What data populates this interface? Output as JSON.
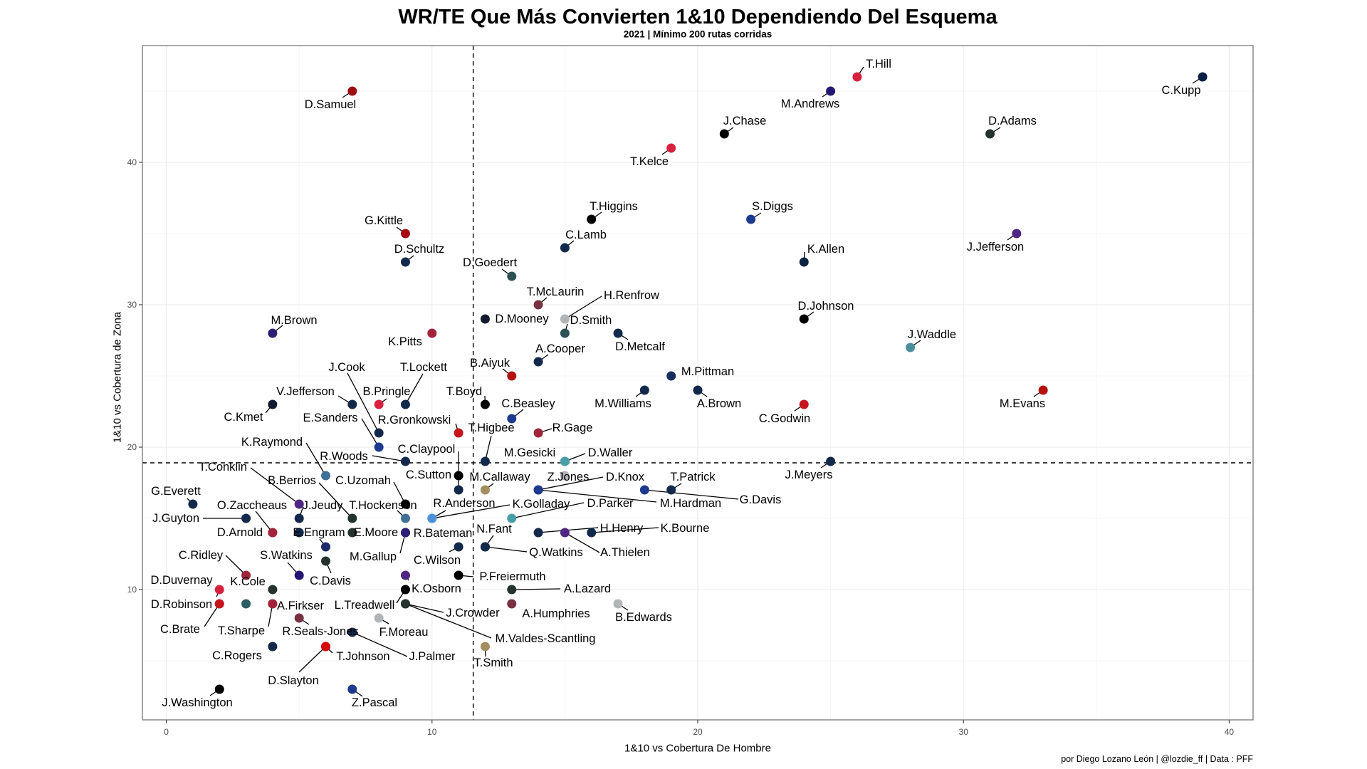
{
  "chart_data": {
    "type": "scatter",
    "title": "WR/TE Que Más Convierten 1&10 Dependiendo Del Esquema",
    "subtitle": "2021 | Mínimo 200 rutas corridas",
    "xlabel": "1&10 vs Cobertura De Hombre",
    "ylabel": "1&10 vs Cobertura de Zona",
    "caption": "por Diego Lozano León | @lozdie_ff | Data : PFF",
    "xlim": [
      -0.9,
      40.9
    ],
    "ylim": [
      0.85,
      48.2
    ],
    "x_ticks": [
      0,
      10,
      20,
      30,
      40
    ],
    "y_ticks": [
      10,
      20,
      30,
      40
    ],
    "grid": true,
    "reference_lines": {
      "x": 11.55,
      "y": 18.9
    },
    "points": [
      {
        "name": "D.Samuel",
        "x": 7,
        "y": 45,
        "color": "#9b0f12"
      },
      {
        "name": "T.Hill",
        "x": 26,
        "y": 46,
        "color": "#d8213f"
      },
      {
        "name": "M.Andrews",
        "x": 25,
        "y": 45,
        "color": "#241773"
      },
      {
        "name": "C.Kupp",
        "x": 39,
        "y": 46,
        "color": "#0b1f44"
      },
      {
        "name": "J.Chase",
        "x": 21,
        "y": 42,
        "color": "#000000"
      },
      {
        "name": "D.Adams",
        "x": 31,
        "y": 42,
        "color": "#24332d"
      },
      {
        "name": "T.Kelce",
        "x": 19,
        "y": 41,
        "color": "#d8213f"
      },
      {
        "name": "T.Higgins",
        "x": 16,
        "y": 36,
        "color": "#000000"
      },
      {
        "name": "S.Diggs",
        "x": 22,
        "y": 36,
        "color": "#1d3a8f"
      },
      {
        "name": "J.Jefferson",
        "x": 32,
        "y": 35,
        "color": "#4f2683"
      },
      {
        "name": "G.Kittle",
        "x": 9,
        "y": 35,
        "color": "#a50d12"
      },
      {
        "name": "C.Lamb",
        "x": 15,
        "y": 34,
        "color": "#13294b"
      },
      {
        "name": "D.Schultz",
        "x": 9,
        "y": 33,
        "color": "#13294b"
      },
      {
        "name": "K.Allen",
        "x": 24,
        "y": 33,
        "color": "#0c2340"
      },
      {
        "name": "D.Goedert",
        "x": 13,
        "y": 32,
        "color": "#2b5056"
      },
      {
        "name": "T.McLaurin",
        "x": 14,
        "y": 30,
        "color": "#773141"
      },
      {
        "name": "D.Mooney",
        "x": 12,
        "y": 29,
        "color": "#111a2e"
      },
      {
        "name": "H.Renfrow",
        "x": 15,
        "y": 29,
        "color": "#b1b5b8"
      },
      {
        "name": "D.Johnson",
        "x": 24,
        "y": 29,
        "color": "#000000"
      },
      {
        "name": "M.Brown",
        "x": 4,
        "y": 28,
        "color": "#2b1e76"
      },
      {
        "name": "D.Smith",
        "x": 15,
        "y": 28,
        "color": "#2b5056"
      },
      {
        "name": "D.Metcalf",
        "x": 17,
        "y": 28,
        "color": "#13294b"
      },
      {
        "name": "K.Pitts",
        "x": 10,
        "y": 28,
        "color": "#a2243a"
      },
      {
        "name": "J.Waddle",
        "x": 28,
        "y": 27,
        "color": "#4a8f9c"
      },
      {
        "name": "A.Cooper",
        "x": 14,
        "y": 26,
        "color": "#13294b"
      },
      {
        "name": "B.Aiyuk",
        "x": 13,
        "y": 25,
        "color": "#b3120e"
      },
      {
        "name": "M.Pittman",
        "x": 19,
        "y": 25,
        "color": "#172f5e"
      },
      {
        "name": "M.Williams",
        "x": 18,
        "y": 24,
        "color": "#13294b"
      },
      {
        "name": "A.Brown",
        "x": 20,
        "y": 24,
        "color": "#13294b"
      },
      {
        "name": "M.Evans",
        "x": 33,
        "y": 24,
        "color": "#b3120e"
      },
      {
        "name": "C.Kmet",
        "x": 4,
        "y": 23,
        "color": "#111a2e"
      },
      {
        "name": "V.Jefferson",
        "x": 7,
        "y": 23,
        "color": "#13294b"
      },
      {
        "name": "B.Pringle",
        "x": 8,
        "y": 23,
        "color": "#d8213f"
      },
      {
        "name": "T.Lockett",
        "x": 9,
        "y": 23,
        "color": "#13294b"
      },
      {
        "name": "T.Boyd",
        "x": 12,
        "y": 23,
        "color": "#000000"
      },
      {
        "name": "C.Godwin",
        "x": 24,
        "y": 23,
        "color": "#c4161c"
      },
      {
        "name": "C.Beasley",
        "x": 13,
        "y": 22,
        "color": "#1d3a8f"
      },
      {
        "name": "J.Cook",
        "x": 8,
        "y": 21,
        "color": "#13294b"
      },
      {
        "name": "R.Gronkowski",
        "x": 11,
        "y": 21,
        "color": "#c4161c"
      },
      {
        "name": "R.Gage",
        "x": 14,
        "y": 21,
        "color": "#a2243a"
      },
      {
        "name": "E.Sanders",
        "x": 8,
        "y": 20,
        "color": "#1d3a8f"
      },
      {
        "name": "R.Woods",
        "x": 9,
        "y": 19,
        "color": "#13294b"
      },
      {
        "name": "T.Higbee",
        "x": 12,
        "y": 19,
        "color": "#13294b"
      },
      {
        "name": "M.Gesicki",
        "x": 15,
        "y": 19,
        "color": "#4a9ea8"
      },
      {
        "name": "D.Waller",
        "x": 15,
        "y": 19,
        "color": "#4a9ea8"
      },
      {
        "name": "J.Meyers",
        "x": 25,
        "y": 19,
        "color": "#13294b"
      },
      {
        "name": "K.Raymond",
        "x": 6,
        "y": 18,
        "color": "#3f7095"
      },
      {
        "name": "C.Sutton",
        "x": 11,
        "y": 18,
        "color": "#000000"
      },
      {
        "name": "Z.Jones",
        "x": 15,
        "y": 18,
        "color": "#b1b5b8"
      },
      {
        "name": "C.Claypool",
        "x": 11,
        "y": 17,
        "color": "#13294b"
      },
      {
        "name": "M.Callaway",
        "x": 12,
        "y": 17,
        "color": "#a38f60"
      },
      {
        "name": "D.Knox",
        "x": 14,
        "y": 17,
        "color": "#1d3a8f"
      },
      {
        "name": "M.Hardman",
        "x": 14,
        "y": 17,
        "color": "#1d3a8f"
      },
      {
        "name": "G.Davis",
        "x": 18,
        "y": 17,
        "color": "#1d3a8f"
      },
      {
        "name": "T.Patrick",
        "x": 19,
        "y": 17,
        "color": "#13294b"
      },
      {
        "name": "G.Everett",
        "x": 1,
        "y": 16,
        "color": "#13294b"
      },
      {
        "name": "T.Conklin",
        "x": 5,
        "y": 16,
        "color": "#4f2683"
      },
      {
        "name": "C.Uzomah",
        "x": 9,
        "y": 16,
        "color": "#000000"
      },
      {
        "name": "J.Guyton",
        "x": 3,
        "y": 15,
        "color": "#13294b"
      },
      {
        "name": "J.Jeudy",
        "x": 5,
        "y": 15,
        "color": "#13294b"
      },
      {
        "name": "B.Berrios",
        "x": 7,
        "y": 15,
        "color": "#24332d"
      },
      {
        "name": "T.Hockenson",
        "x": 9,
        "y": 15,
        "color": "#3f7095"
      },
      {
        "name": "R.Anderson",
        "x": 10,
        "y": 15,
        "color": "#4b92db"
      },
      {
        "name": "K.Golladay",
        "x": 10,
        "y": 15,
        "color": "#4b92db"
      },
      {
        "name": "D.Parker",
        "x": 13,
        "y": 15,
        "color": "#4a9ea8"
      },
      {
        "name": "O.Zaccheaus",
        "x": 4,
        "y": 14,
        "color": "#a2243a"
      },
      {
        "name": "D.Arnold",
        "x": 4,
        "y": 14,
        "color": "#a2243a"
      },
      {
        "name": "E.Moore",
        "x": 7,
        "y": 14,
        "color": "#24332d"
      },
      {
        "name": "R.Bateman",
        "x": 9,
        "y": 14,
        "color": "#2b1e76"
      },
      {
        "name": "M.Gallup",
        "x": 9,
        "y": 14,
        "color": "#2b1e76"
      },
      {
        "name": "H.Henry",
        "x": 14,
        "y": 14,
        "color": "#13294b"
      },
      {
        "name": "A.Thielen",
        "x": 15,
        "y": 14,
        "color": "#4f2683"
      },
      {
        "name": "K.Bourne",
        "x": 16,
        "y": 14,
        "color": "#13294b"
      },
      {
        "name": "E.Engram",
        "x": 6,
        "y": 13,
        "color": "#1b2a6b"
      },
      {
        "name": "C.Wilson",
        "x": 11,
        "y": 13,
        "color": "#13294b"
      },
      {
        "name": "N.Fant",
        "x": 12,
        "y": 13,
        "color": "#13294b"
      },
      {
        "name": "Q.Watkins",
        "x": 12,
        "y": 13,
        "color": "#13294b"
      },
      {
        "name": "C.Davis",
        "x": 6,
        "y": 12,
        "color": "#24332d"
      },
      {
        "name": "C.Ridley",
        "x": 3,
        "y": 11,
        "color": "#a2243a"
      },
      {
        "name": "S.Watkins",
        "x": 5,
        "y": 11,
        "color": "#241773"
      },
      {
        "name": "K.Osborn",
        "x": 9,
        "y": 11,
        "color": "#4f2683"
      },
      {
        "name": "P.Freiermuth",
        "x": 11,
        "y": 11,
        "color": "#000000"
      },
      {
        "name": "D.Duvernay",
        "x": 2,
        "y": 10,
        "color": "#d8213f"
      },
      {
        "name": "K.Cole",
        "x": 4,
        "y": 10,
        "color": "#24332d"
      },
      {
        "name": "L.Treadwell",
        "x": 9,
        "y": 10,
        "color": "#000000"
      },
      {
        "name": "A.Lazard",
        "x": 13,
        "y": 10,
        "color": "#24332d"
      },
      {
        "name": "D.Robinson",
        "x": 2,
        "y": 9,
        "color": "#c4161c"
      },
      {
        "name": "C.Brate",
        "x": 2,
        "y": 9,
        "color": "#c4161c"
      },
      {
        "name": "A.Firkser",
        "x": 4,
        "y": 9,
        "color": "#a2243a"
      },
      {
        "name": "T.Sharpe",
        "x": 4,
        "y": 9,
        "color": "#a2243a"
      },
      {
        "name": "J.Crowder",
        "x": 9,
        "y": 9,
        "color": "#24332d"
      },
      {
        "name": "M.Valdes-Scantling",
        "x": 9,
        "y": 9,
        "color": "#24332d"
      },
      {
        "name": "A.Humphries",
        "x": 13,
        "y": 9,
        "color": "#773141"
      },
      {
        "name": "B.Edwards",
        "x": 17,
        "y": 9,
        "color": "#b1b5b8"
      },
      {
        "name": "R.Seals-Jones",
        "x": 5,
        "y": 8,
        "color": "#773141"
      },
      {
        "name": "F.Moreau",
        "x": 8,
        "y": 8,
        "color": "#b1b5b8"
      },
      {
        "name": "J.Palmer",
        "x": 7,
        "y": 7,
        "color": "#13294b"
      },
      {
        "name": "C.Rogers",
        "x": 4,
        "y": 6,
        "color": "#13294b"
      },
      {
        "name": "D.Slayton",
        "x": 6,
        "y": 6,
        "color": "#d50a0a"
      },
      {
        "name": "T.Johnson",
        "x": 6,
        "y": 6,
        "color": "#d50a0a"
      },
      {
        "name": "T.Smith",
        "x": 12,
        "y": 6,
        "color": "#a38f60"
      },
      {
        "name": "J.Washington",
        "x": 2,
        "y": 3,
        "color": "#000000"
      },
      {
        "name": "Z.Pascal",
        "x": 7,
        "y": 3,
        "color": "#1d3a8f"
      }
    ],
    "unlabeled_points": [
      {
        "x": 3,
        "y": 9,
        "color": "#2f5d63"
      },
      {
        "x": 5,
        "y": 14,
        "color": "#13294b"
      }
    ]
  }
}
